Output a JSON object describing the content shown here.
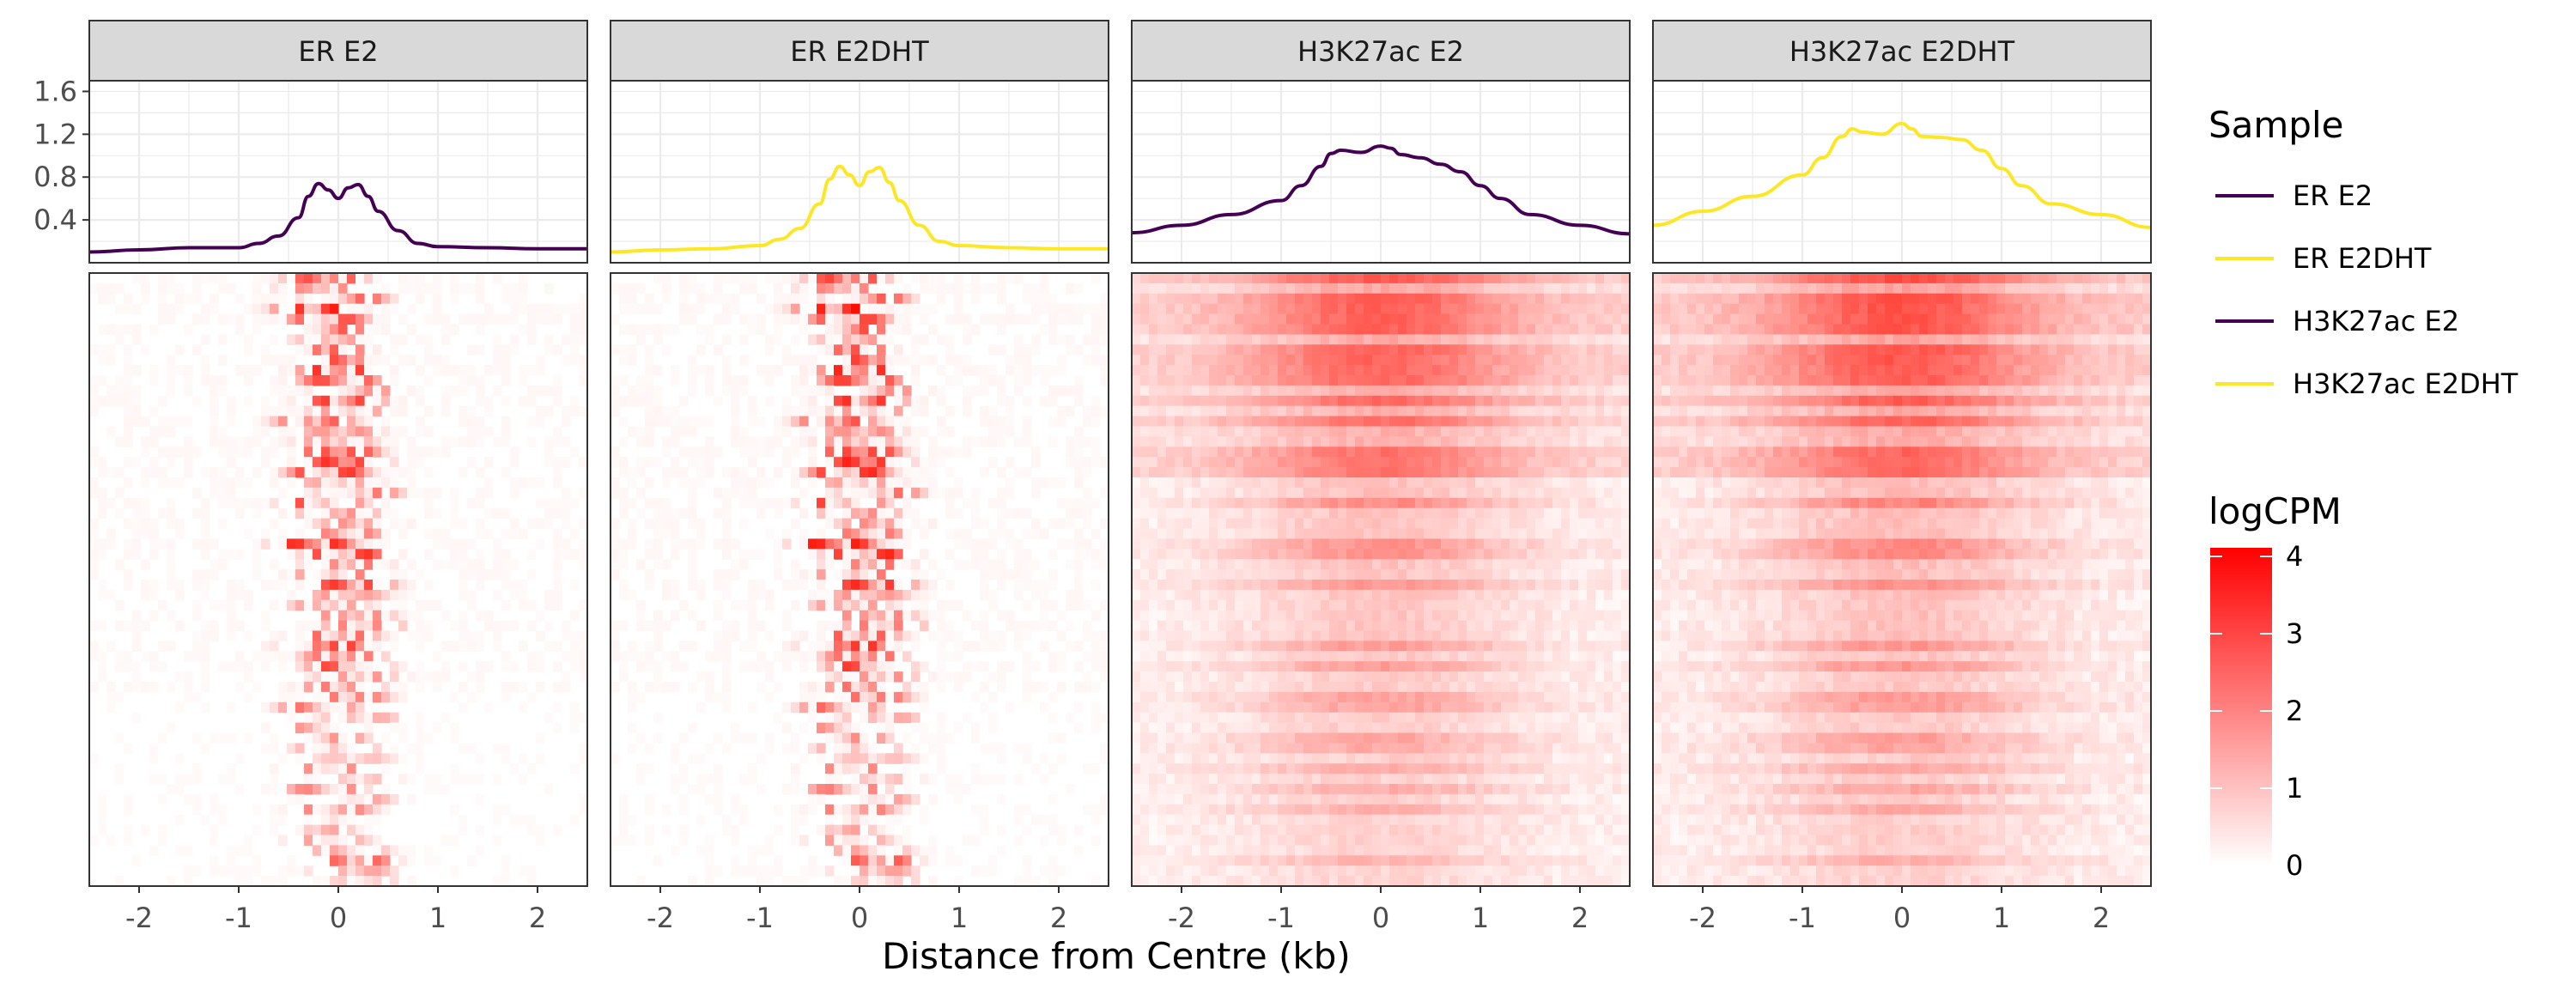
{
  "chart_data": {
    "type": "profile_heatmap",
    "xlabel": "Distance from Centre (kb)",
    "x_ticks": [
      "-2",
      "-1",
      "0",
      "1",
      "2"
    ],
    "xlim": [
      -2.5,
      2.5
    ],
    "profile_ylim": [
      0,
      1.7
    ],
    "profile_y_ticks": [
      "0.4",
      "0.8",
      "1.2",
      "1.6"
    ],
    "grid": true,
    "legend_position": "right",
    "panels": [
      {
        "label": "ER E2",
        "sample": "ER E2",
        "kind": "ER",
        "profile": {
          "x": [
            -2.5,
            -2.0,
            -1.5,
            -1.0,
            -0.8,
            -0.6,
            -0.4,
            -0.3,
            -0.2,
            -0.1,
            0.0,
            0.1,
            0.2,
            0.3,
            0.4,
            0.6,
            0.8,
            1.0,
            1.5,
            2.0,
            2.5
          ],
          "y": [
            0.1,
            0.12,
            0.14,
            0.14,
            0.18,
            0.25,
            0.42,
            0.62,
            0.74,
            0.68,
            0.6,
            0.7,
            0.73,
            0.62,
            0.48,
            0.3,
            0.18,
            0.15,
            0.14,
            0.13,
            0.13
          ]
        }
      },
      {
        "label": "ER E2DHT",
        "sample": "ER E2DHT",
        "kind": "ER",
        "profile": {
          "x": [
            -2.5,
            -2.0,
            -1.5,
            -1.0,
            -0.8,
            -0.6,
            -0.4,
            -0.3,
            -0.2,
            -0.1,
            0.0,
            0.1,
            0.2,
            0.3,
            0.4,
            0.6,
            0.8,
            1.0,
            1.5,
            2.0,
            2.5
          ],
          "y": [
            0.1,
            0.12,
            0.13,
            0.16,
            0.22,
            0.32,
            0.55,
            0.78,
            0.9,
            0.82,
            0.72,
            0.85,
            0.89,
            0.75,
            0.58,
            0.35,
            0.2,
            0.16,
            0.14,
            0.13,
            0.13
          ]
        }
      },
      {
        "label": "H3K27ac E2",
        "sample": "H3K27ac E2",
        "kind": "H3K27ac",
        "profile": {
          "x": [
            -2.5,
            -2.0,
            -1.5,
            -1.0,
            -0.8,
            -0.6,
            -0.5,
            -0.4,
            -0.2,
            0.0,
            0.1,
            0.2,
            0.4,
            0.6,
            0.8,
            1.0,
            1.2,
            1.5,
            2.0,
            2.5
          ],
          "y": [
            0.28,
            0.35,
            0.45,
            0.58,
            0.72,
            0.9,
            1.02,
            1.05,
            1.03,
            1.09,
            1.07,
            1.01,
            0.98,
            0.92,
            0.85,
            0.72,
            0.6,
            0.45,
            0.35,
            0.27
          ]
        }
      },
      {
        "label": "H3K27ac E2DHT",
        "sample": "H3K27ac E2DHT",
        "kind": "H3K27ac",
        "profile": {
          "x": [
            -2.5,
            -2.0,
            -1.5,
            -1.0,
            -0.8,
            -0.6,
            -0.5,
            -0.4,
            -0.2,
            0.0,
            0.1,
            0.2,
            0.4,
            0.6,
            0.8,
            1.0,
            1.2,
            1.5,
            2.0,
            2.5
          ],
          "y": [
            0.35,
            0.48,
            0.62,
            0.82,
            0.98,
            1.18,
            1.25,
            1.22,
            1.2,
            1.3,
            1.25,
            1.18,
            1.17,
            1.15,
            1.05,
            0.88,
            0.72,
            0.55,
            0.45,
            0.33
          ]
        }
      }
    ],
    "legends": {
      "sample": {
        "title": "Sample",
        "entries": [
          {
            "name": "ER E2",
            "color": "#440154"
          },
          {
            "name": "ER E2DHT",
            "color": "#FDE725"
          },
          {
            "name": "H3K27ac E2",
            "color": "#440154"
          },
          {
            "name": "H3K27ac E2DHT",
            "color": "#FDE725"
          }
        ]
      },
      "fill": {
        "title": "logCPM",
        "range": [
          0,
          4
        ],
        "ticks": [
          "0",
          "1",
          "2",
          "3",
          "4"
        ],
        "low_color": "#FFFFFF",
        "high_color": "#FF0000"
      }
    }
  }
}
